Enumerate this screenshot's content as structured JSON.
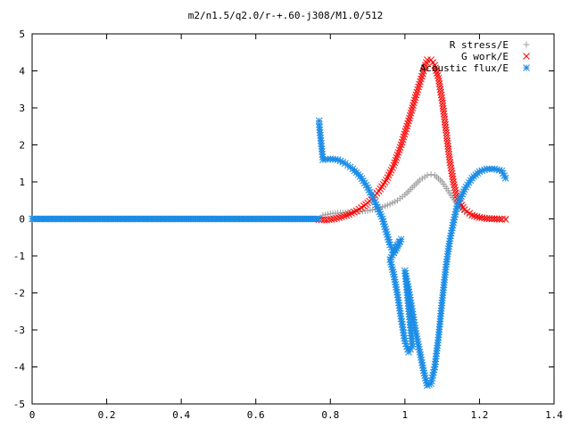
{
  "chart_data": {
    "type": "scatter",
    "title": "m2/n1.5/q2.0/r-+.60-j308/M1.0/512",
    "xlabel": "",
    "ylabel": "",
    "xlim": [
      0,
      1.4
    ],
    "ylim": [
      -5,
      5
    ],
    "x_ticks": [
      "0",
      "0.2",
      "0.4",
      "0.6",
      "0.8",
      "1",
      "1.2",
      "1.4"
    ],
    "y_ticks": [
      "5",
      "4",
      "3",
      "2",
      "1",
      "0",
      "-1",
      "-2",
      "-3",
      "-4",
      "-5"
    ],
    "legend_position": "top-right",
    "grid": false,
    "series": [
      {
        "name": "R stress/E",
        "marker": "plus",
        "color": "#a0a0a0",
        "points": [
          [
            0.78,
            0.1
          ],
          [
            0.8,
            0.14
          ],
          [
            0.82,
            0.16
          ],
          [
            0.84,
            0.17
          ],
          [
            0.86,
            0.18
          ],
          [
            0.88,
            0.2
          ],
          [
            0.9,
            0.22
          ],
          [
            0.92,
            0.26
          ],
          [
            0.94,
            0.32
          ],
          [
            0.96,
            0.4
          ],
          [
            0.98,
            0.5
          ],
          [
            1.0,
            0.65
          ],
          [
            1.02,
            0.85
          ],
          [
            1.04,
            1.05
          ],
          [
            1.06,
            1.18
          ],
          [
            1.07,
            1.2
          ],
          [
            1.08,
            1.18
          ],
          [
            1.1,
            1.0
          ],
          [
            1.12,
            0.7
          ],
          [
            1.14,
            0.4
          ],
          [
            1.16,
            0.2
          ],
          [
            1.18,
            0.1
          ],
          [
            1.2,
            0.05
          ],
          [
            1.22,
            0.03
          ],
          [
            1.24,
            0.02
          ],
          [
            1.26,
            0.01
          ],
          [
            1.27,
            0.01
          ]
        ]
      },
      {
        "name": "G work/E",
        "marker": "cross",
        "color": "#ff0000",
        "points": [
          [
            0.77,
            -0.02
          ],
          [
            0.79,
            -0.03
          ],
          [
            0.81,
            0.0
          ],
          [
            0.83,
            0.05
          ],
          [
            0.85,
            0.12
          ],
          [
            0.87,
            0.22
          ],
          [
            0.89,
            0.35
          ],
          [
            0.91,
            0.52
          ],
          [
            0.93,
            0.75
          ],
          [
            0.95,
            1.05
          ],
          [
            0.97,
            1.45
          ],
          [
            0.99,
            2.0
          ],
          [
            1.01,
            2.65
          ],
          [
            1.03,
            3.35
          ],
          [
            1.05,
            4.0
          ],
          [
            1.06,
            4.3
          ],
          [
            1.07,
            4.3
          ],
          [
            1.08,
            4.15
          ],
          [
            1.09,
            3.8
          ],
          [
            1.1,
            3.2
          ],
          [
            1.11,
            2.4
          ],
          [
            1.12,
            1.6
          ],
          [
            1.13,
            1.0
          ],
          [
            1.14,
            0.55
          ],
          [
            1.16,
            0.25
          ],
          [
            1.18,
            0.1
          ],
          [
            1.2,
            0.04
          ],
          [
            1.22,
            0.01
          ],
          [
            1.24,
            0.0
          ],
          [
            1.26,
            -0.01
          ],
          [
            1.27,
            -0.01
          ]
        ]
      },
      {
        "name": "Acoustic flux/E",
        "marker": "star",
        "color": "#1a8ce6",
        "points": [
          [
            0.77,
            2.65
          ],
          [
            0.77,
            2.55
          ],
          [
            0.78,
            1.6
          ],
          [
            0.8,
            1.62
          ],
          [
            0.82,
            1.6
          ],
          [
            0.84,
            1.5
          ],
          [
            0.86,
            1.35
          ],
          [
            0.88,
            1.15
          ],
          [
            0.9,
            0.85
          ],
          [
            0.92,
            0.45
          ],
          [
            0.94,
            0.0
          ],
          [
            0.95,
            -0.35
          ],
          [
            0.96,
            -0.7
          ],
          [
            0.97,
            -0.9
          ],
          [
            0.98,
            -0.7
          ],
          [
            0.99,
            -0.55
          ],
          [
            0.96,
            -1.1
          ],
          [
            0.97,
            -1.5
          ],
          [
            0.98,
            -2.05
          ],
          [
            0.99,
            -2.7
          ],
          [
            1.0,
            -3.3
          ],
          [
            1.01,
            -3.6
          ],
          [
            1.02,
            -3.45
          ],
          [
            1.0,
            -1.4
          ],
          [
            1.01,
            -1.9
          ],
          [
            1.02,
            -2.5
          ],
          [
            1.03,
            -3.1
          ],
          [
            1.04,
            -3.6
          ],
          [
            1.05,
            -4.1
          ],
          [
            1.06,
            -4.5
          ],
          [
            1.07,
            -4.45
          ],
          [
            1.08,
            -4.0
          ],
          [
            1.09,
            -3.2
          ],
          [
            1.1,
            -2.2
          ],
          [
            1.11,
            -1.3
          ],
          [
            1.12,
            -0.6
          ],
          [
            1.13,
            -0.1
          ],
          [
            1.14,
            0.35
          ],
          [
            1.16,
            0.8
          ],
          [
            1.18,
            1.1
          ],
          [
            1.2,
            1.28
          ],
          [
            1.22,
            1.35
          ],
          [
            1.24,
            1.35
          ],
          [
            1.26,
            1.3
          ],
          [
            1.27,
            1.1
          ]
        ]
      },
      {
        "name": "",
        "marker": "star",
        "color": "#1a8ce6",
        "x_range": [
          0,
          0.77
        ],
        "points": [
          [
            0,
            0
          ],
          [
            0.77,
            0
          ]
        ]
      }
    ]
  }
}
